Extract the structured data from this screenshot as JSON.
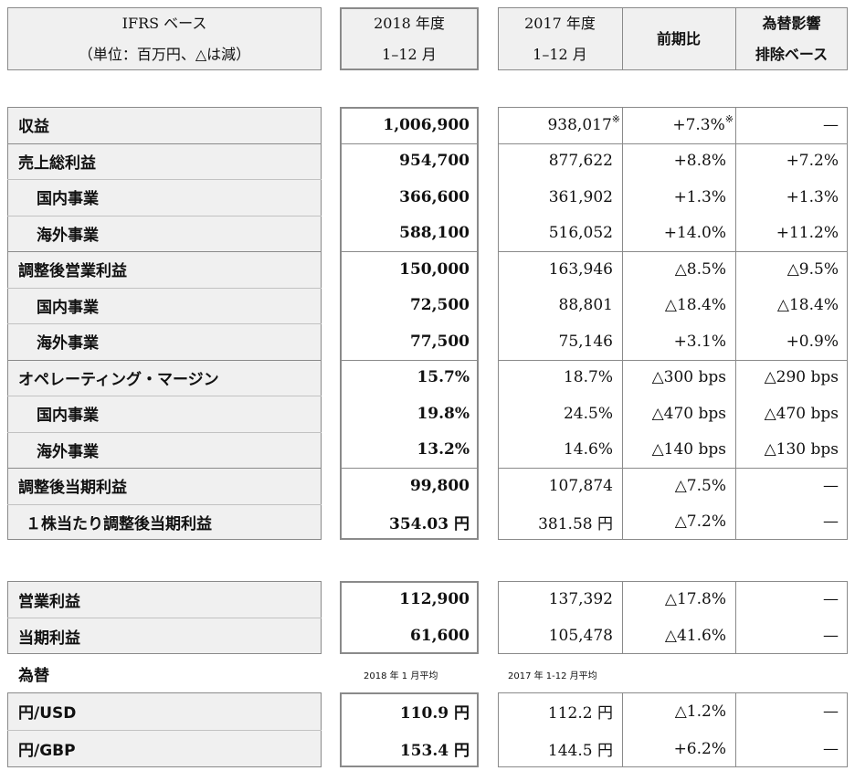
{
  "header": {
    "label_line1": "IFRS ベース",
    "label_line2": "（単位：百万円、△は減）",
    "col2018_line1": "2018 年度",
    "col2018_line2": "1–12 月",
    "col2017_line1": "2017 年度",
    "col2017_line2": "1–12 月",
    "col_yoy": "前期比",
    "col_fx_line1": "為替影響",
    "col_fx_line2": "排除ベース"
  },
  "section1": [
    {
      "label": "収益",
      "indent": false,
      "v2018": "1,006,900",
      "v2017": "938,017",
      "v2017_mark": "※",
      "yoy": "+7.3%",
      "yoy_mark": "※",
      "fx": "—"
    },
    {
      "label": "売上総利益",
      "indent": false,
      "v2018": "954,700",
      "v2017": "877,622",
      "yoy": "+8.8%",
      "fx": "+7.2%"
    },
    {
      "label": "国内事業",
      "indent": true,
      "v2018": "366,600",
      "v2017": "361,902",
      "yoy": "+1.3%",
      "fx": "+1.3%"
    },
    {
      "label": "海外事業",
      "indent": true,
      "v2018": "588,100",
      "v2017": "516,052",
      "yoy": "+14.0%",
      "fx": "+11.2%"
    },
    {
      "label": "調整後営業利益",
      "indent": false,
      "v2018": "150,000",
      "v2017": "163,946",
      "yoy": "△8.5%",
      "fx": "△9.5%"
    },
    {
      "label": "国内事業",
      "indent": true,
      "v2018": "72,500",
      "v2017": "88,801",
      "yoy": "△18.4%",
      "fx": "△18.4%"
    },
    {
      "label": "海外事業",
      "indent": true,
      "v2018": "77,500",
      "v2017": "75,146",
      "yoy": "+3.1%",
      "fx": "+0.9%"
    },
    {
      "label": "オペレーティング・マージン",
      "indent": false,
      "v2018": "15.7%",
      "v2017": "18.7%",
      "yoy": "△300 bps",
      "fx": "△290 bps"
    },
    {
      "label": "国内事業",
      "indent": true,
      "v2018": "19.8%",
      "v2017": "24.5%",
      "yoy": "△470 bps",
      "fx": "△470 bps"
    },
    {
      "label": "海外事業",
      "indent": true,
      "v2018": "13.2%",
      "v2017": "14.6%",
      "yoy": "△140 bps",
      "fx": "△130 bps"
    },
    {
      "label": "調整後当期利益",
      "indent": false,
      "v2018": "99,800",
      "v2017": "107,874",
      "yoy": "△7.5%",
      "fx": "—"
    },
    {
      "label": "１株当たり調整後当期利益",
      "indent": "small",
      "v2018": "354.03 円",
      "v2017": "381.58 円",
      "yoy": "△7.2%",
      "fx": "—"
    }
  ],
  "section2": [
    {
      "label": "営業利益",
      "v2018": "112,900",
      "v2017": "137,392",
      "yoy": "△17.8%",
      "fx": "—"
    },
    {
      "label": "当期利益",
      "v2018": "61,600",
      "v2017": "105,478",
      "yoy": "△41.6%",
      "fx": "—"
    }
  ],
  "fx_section": {
    "label": "為替",
    "note2018": "2018 年 1 月平均",
    "note2017": "2017 年 1-12 月平均",
    "rows": [
      {
        "label": "円/USD",
        "v2018": "110.9 円",
        "v2017": "112.2 円",
        "yoy": "△1.2%",
        "fx": "—"
      },
      {
        "label": "円/GBP",
        "v2018": "153.4 円",
        "v2017": "144.5 円",
        "yoy": "+6.2%",
        "fx": "—"
      }
    ]
  }
}
